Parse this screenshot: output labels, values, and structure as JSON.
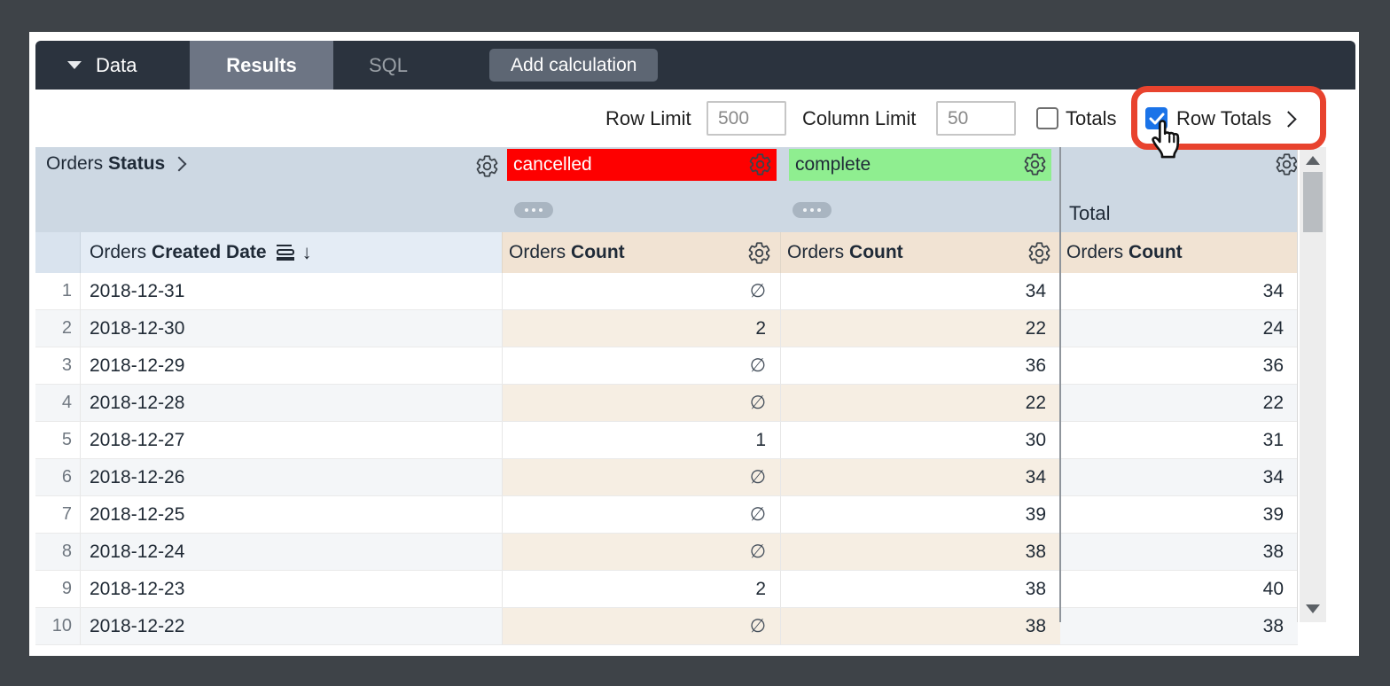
{
  "toolbar": {
    "data_label": "Data",
    "results_label": "Results",
    "sql_label": "SQL",
    "add_calculation_label": "Add calculation"
  },
  "controls": {
    "row_limit_label": "Row Limit",
    "row_limit_value": "500",
    "column_limit_label": "Column Limit",
    "column_limit_value": "50",
    "totals_label": "Totals",
    "totals_checked": false,
    "row_totals_label": "Row Totals",
    "row_totals_checked": true
  },
  "table": {
    "pivot_dimension": {
      "view": "Orders",
      "field": "Status"
    },
    "pivots": [
      {
        "label": "cancelled",
        "bg_color": "#fe0000",
        "text_color": "#ffffff"
      },
      {
        "label": "complete",
        "bg_color": "#8fee90",
        "text_color": "#1f2a37"
      }
    ],
    "total_label": "Total",
    "date_header": {
      "view": "Orders",
      "field": "Created Date"
    },
    "measure_header": {
      "view": "Orders",
      "field": "Count"
    },
    "null_symbol": "∅",
    "rows": [
      {
        "num": "1",
        "date": "2018-12-31",
        "cancelled": "∅",
        "complete": "34",
        "total": "34"
      },
      {
        "num": "2",
        "date": "2018-12-30",
        "cancelled": "2",
        "complete": "22",
        "total": "24"
      },
      {
        "num": "3",
        "date": "2018-12-29",
        "cancelled": "∅",
        "complete": "36",
        "total": "36"
      },
      {
        "num": "4",
        "date": "2018-12-28",
        "cancelled": "∅",
        "complete": "22",
        "total": "22"
      },
      {
        "num": "5",
        "date": "2018-12-27",
        "cancelled": "1",
        "complete": "30",
        "total": "31"
      },
      {
        "num": "6",
        "date": "2018-12-26",
        "cancelled": "∅",
        "complete": "34",
        "total": "34"
      },
      {
        "num": "7",
        "date": "2018-12-25",
        "cancelled": "∅",
        "complete": "39",
        "total": "39"
      },
      {
        "num": "8",
        "date": "2018-12-24",
        "cancelled": "∅",
        "complete": "38",
        "total": "38"
      },
      {
        "num": "9",
        "date": "2018-12-23",
        "cancelled": "2",
        "complete": "38",
        "total": "40"
      },
      {
        "num": "10",
        "date": "2018-12-22",
        "cancelled": "∅",
        "complete": "38",
        "total": "38"
      }
    ]
  },
  "colors": {
    "accent_blue": "#1a73e8",
    "highlight_red": "#e8432e",
    "pivot_red": "#fe0000",
    "pivot_green": "#8fee90",
    "topbar": "#2b333e",
    "header_band": "#cdd8e3",
    "measure_header_bg": "#f1e3d3"
  }
}
